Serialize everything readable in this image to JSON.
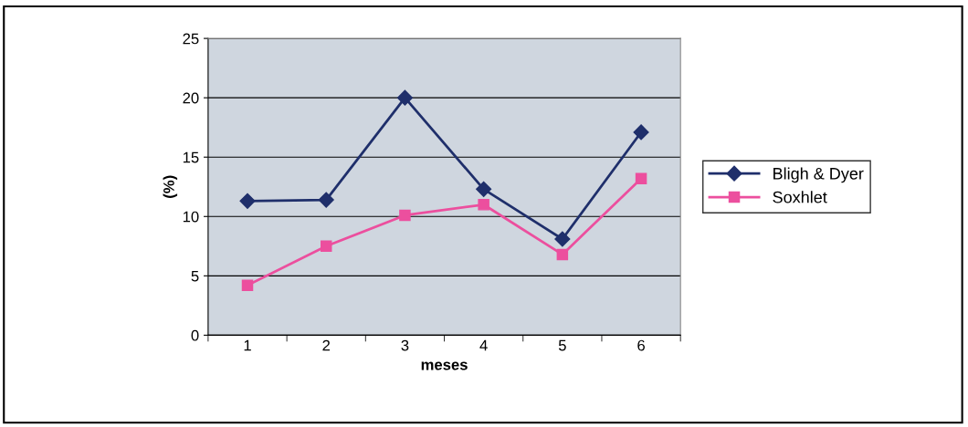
{
  "chart_data": {
    "type": "line",
    "xlabel": "meses",
    "ylabel": "(%)",
    "categories": [
      "1",
      "2",
      "3",
      "4",
      "5",
      "6"
    ],
    "series": [
      {
        "name": "Bligh & Dyer",
        "color": "#1f2f6b",
        "values": [
          11.3,
          11.4,
          20.0,
          12.3,
          8.1,
          17.1
        ],
        "marker": "diamond"
      },
      {
        "name": "Soxhlet",
        "color": "#ec4f9e",
        "values": [
          4.2,
          7.5,
          10.1,
          11.0,
          6.8,
          13.2
        ],
        "marker": "square"
      }
    ],
    "ylim": [
      0,
      25
    ],
    "yticks": [
      0,
      5,
      10,
      15,
      20,
      25
    ],
    "grid": "y",
    "legend": "right",
    "line_style": "solid"
  }
}
